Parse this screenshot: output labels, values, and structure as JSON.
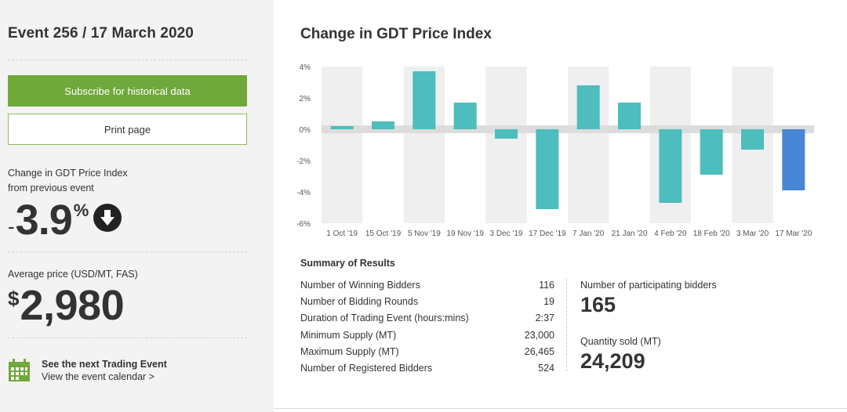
{
  "event": {
    "title": "Event 256 / 17 March 2020"
  },
  "buttons": {
    "subscribe_label": "Subscribe for historical data",
    "print_label": "Print page"
  },
  "change": {
    "label_line1": "Change in GDT Price Index",
    "label_line2": "from previous event",
    "sign": "-",
    "value": "3.9",
    "unit": "%"
  },
  "price": {
    "label": "Average price (USD/MT, FAS)",
    "currency": "$",
    "value": "2,980"
  },
  "next_event": {
    "title": "See the next Trading Event",
    "link": "View the event calendar >"
  },
  "chart_title": "Change in GDT Price Index",
  "chart_data": {
    "type": "bar",
    "title": "Change in GDT Price Index",
    "categories": [
      "1 Oct '19",
      "15 Oct '19",
      "5 Nov '19",
      "19 Nov '19",
      "3 Dec '19",
      "17 Dec '19",
      "7 Jan '20",
      "21 Jan '20",
      "4 Feb '20",
      "18 Feb '20",
      "3 Mar '20",
      "17 Mar '20"
    ],
    "values": [
      0.2,
      0.5,
      3.7,
      1.7,
      -0.6,
      -5.1,
      2.8,
      1.7,
      -4.7,
      -2.9,
      -1.3,
      -3.9
    ],
    "ylim": [
      -6,
      4
    ],
    "yticks": [
      "4%",
      "2%",
      "0%",
      "-2%",
      "-4%",
      "-6%"
    ],
    "ytick_values": [
      4,
      2,
      0,
      -2,
      -4,
      -6
    ],
    "colors": {
      "default": "#4dbdbd",
      "highlight": "#4a86d6",
      "band": "#efefef",
      "zero_band": "#dcdcdc"
    },
    "highlight_index": 11
  },
  "summary": {
    "title": "Summary of Results",
    "rows": [
      {
        "label": "Number of Winning Bidders",
        "value": "116"
      },
      {
        "label": "Number of Bidding Rounds",
        "value": "19"
      },
      {
        "label": "Duration of Trading Event (hours:mins)",
        "value": "2:37"
      },
      {
        "label": "Minimum Supply (MT)",
        "value": "23,000"
      },
      {
        "label": "Maximum Supply (MT)",
        "value": "26,465"
      },
      {
        "label": "Number of Registered Bidders",
        "value": "524"
      }
    ],
    "participating_label": "Number of participating bidders",
    "participating_value": "165",
    "quantity_label": "Quantity sold (MT)",
    "quantity_value": "24,209"
  }
}
